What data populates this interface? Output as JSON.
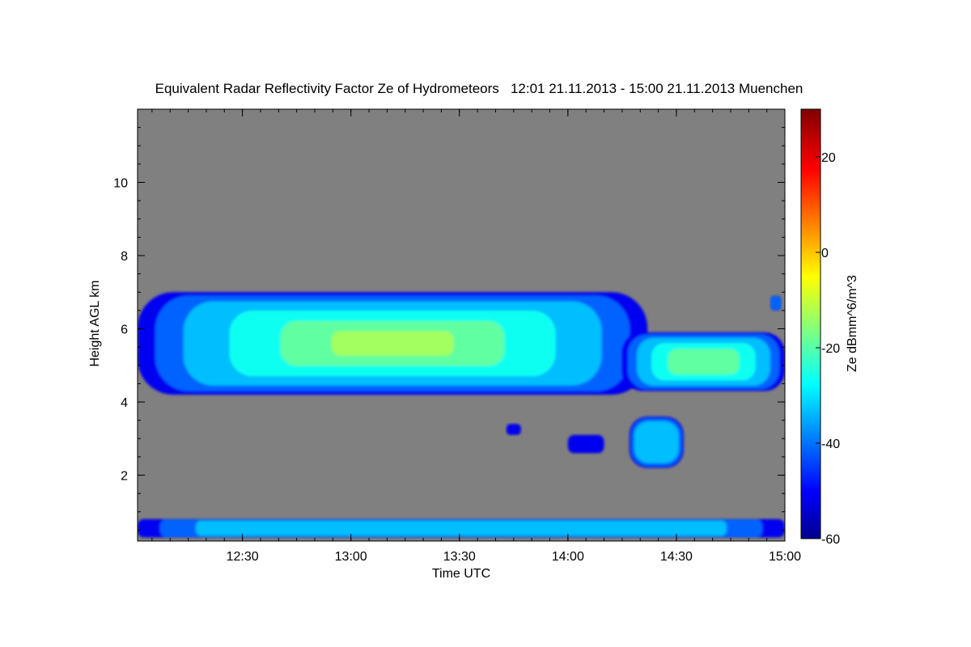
{
  "chart_data": {
    "type": "heatmap",
    "title": "Equivalent Radar Reflectivity Factor Ze of Hydrometeors   12:01 21.11.2013 - 15:00 21.11.2013 Muenchen",
    "xlabel": "Time UTC",
    "ylabel": "Height AGL km",
    "xlim": [
      "12:01",
      "15:00"
    ],
    "ylim": [
      0.2,
      12.0
    ],
    "x_ticks": [
      "12:30",
      "13:00",
      "13:30",
      "14:00",
      "14:30",
      "15:00"
    ],
    "y_ticks": [
      2,
      4,
      6,
      8,
      10
    ],
    "grid": false,
    "background_color": "#808080",
    "colorbar": {
      "label": "Ze dBmm^6/m^3",
      "range": [
        -60,
        30
      ],
      "ticks": [
        -60,
        -40,
        -20,
        0,
        20
      ],
      "colormap": "jet"
    },
    "features": [
      {
        "name": "upper cloud layer",
        "time_start": "12:01",
        "time_end": "14:22",
        "base_km": 4.2,
        "top_km": 7.0,
        "max_ze_dbz": -12
      },
      {
        "name": "second cloud",
        "time_start": "14:15",
        "time_end": "15:00",
        "base_km": 4.3,
        "top_km": 5.9,
        "max_ze_dbz": -16
      },
      {
        "name": "lower echo",
        "time_start": "14:17",
        "time_end": "14:32",
        "base_km": 2.2,
        "top_km": 3.6,
        "max_ze_dbz": -28
      },
      {
        "name": "small echo near 13:45",
        "time_start": "13:43",
        "time_end": "13:47",
        "base_km": 3.1,
        "top_km": 3.4,
        "max_ze_dbz": -42
      },
      {
        "name": "small echo near 14:05",
        "time_start": "14:00",
        "time_end": "14:10",
        "base_km": 2.6,
        "top_km": 3.1,
        "max_ze_dbz": -42
      },
      {
        "name": "small echo near 14:58",
        "time_start": "14:56",
        "time_end": "14:59",
        "base_km": 6.5,
        "top_km": 6.9,
        "max_ze_dbz": -40
      },
      {
        "name": "near-surface layer",
        "time_start": "12:01",
        "time_end": "15:00",
        "base_km": 0.3,
        "top_km": 0.8,
        "max_ze_dbz": -30
      }
    ]
  }
}
